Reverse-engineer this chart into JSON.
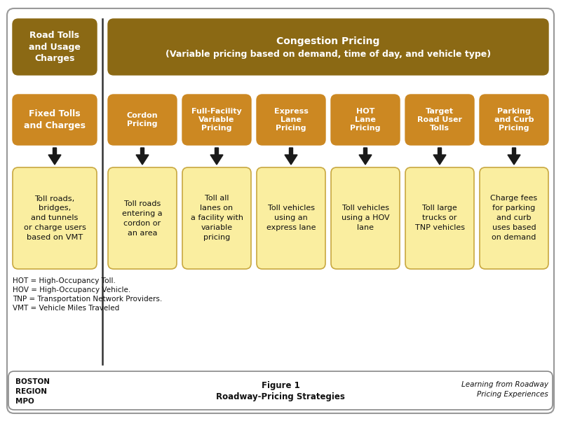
{
  "bg_color": "#ffffff",
  "dark_gold": "#8B6914",
  "medium_gold": "#CC8822",
  "light_yellow": "#FAEEA0",
  "light_yellow_edge": "#C8A840",
  "text_dark": "#111111",
  "main_title_line1": "Congestion Pricing",
  "main_title_line2": "(Variable pricing based on demand, time of day, and vehicle type)",
  "left_header": "Road Tolls\nand Usage\nCharges",
  "left_sub_header": "Fixed Tolls\nand Charges",
  "left_desc": "Toll roads,\nbridges,\nand tunnels\nor charge users\nbased on VMT",
  "categories": [
    {
      "header": "Cordon\nPricing",
      "desc": "Toll roads\nentering a\ncordon or\nan area"
    },
    {
      "header": "Full-Facility\nVariable\nPricing",
      "desc": "Toll all\nlanes on\na facility with\nvariable\npricing"
    },
    {
      "header": "Express\nLane\nPricing",
      "desc": "Toll vehicles\nusing an\nexpress lane"
    },
    {
      "header": "HOT\nLane\nPricing",
      "desc": "Toll vehicles\nusing a HOV\nlane"
    },
    {
      "header": "Target\nRoad User\nTolls",
      "desc": "Toll large\ntrucks or\nTNP vehicles"
    },
    {
      "header": "Parking\nand Curb\nPricing",
      "desc": "Charge fees\nfor parking\nand curb\nuses based\non demand"
    }
  ],
  "footnotes": [
    "HOT = High-Occupancy Toll.",
    "HOV = High-Occupancy Vehicle.",
    "TNP = Transportation Network Providers.",
    "VMT = Vehicle Miles Traveled"
  ],
  "footer_left": "BOSTON\nREGION\nMPO",
  "footer_center_line1": "Figure 1",
  "footer_center_line2": "Roadway-Pricing Strategies",
  "footer_right_line1": "Learning from Roadway",
  "footer_right_line2": "Pricing Experiences",
  "outer_border_color": "#999999",
  "divider_color": "#333333",
  "footer_border_color": "#888888"
}
